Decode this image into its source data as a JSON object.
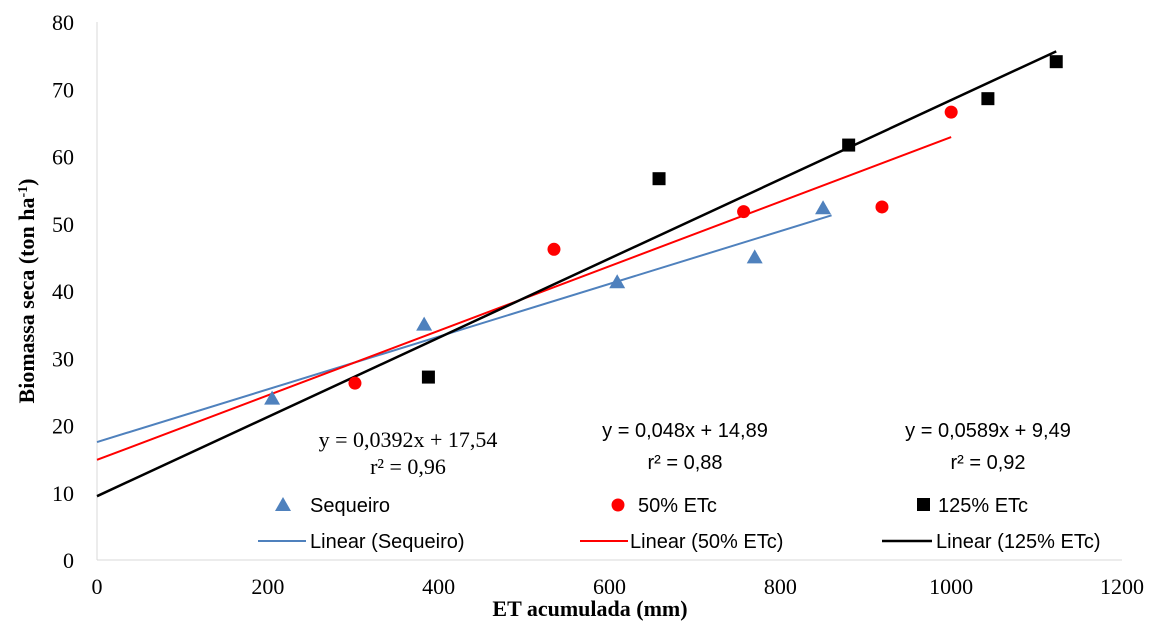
{
  "chart_data": {
    "type": "scatter",
    "xlabel": "ET acumulada (mm)",
    "ylabel_main": "Biomassa seca (ton ha",
    "ylabel_sup": "-1",
    "ylabel_close": ")",
    "xlim": [
      0,
      1200
    ],
    "ylim": [
      0,
      80
    ],
    "xticks": [
      0,
      200,
      400,
      600,
      800,
      1000,
      1200
    ],
    "yticks": [
      0,
      10,
      20,
      30,
      40,
      50,
      60,
      70,
      80
    ],
    "grid": false,
    "legend_position": "bottom",
    "series": [
      {
        "name": "Sequeiro",
        "marker": "triangle",
        "color": "#4f81bd",
        "points": [
          [
            205,
            24
          ],
          [
            383,
            35
          ],
          [
            609,
            41.3
          ],
          [
            770,
            45
          ],
          [
            850,
            52.3
          ]
        ],
        "trend": {
          "name": "Linear (Sequeiro)",
          "slope": 0.0392,
          "intercept": 17.54,
          "x_range": [
            0,
            860
          ],
          "equation": "y = 0,0392x + 17,54",
          "r2": "r² = 0,96"
        }
      },
      {
        "name": "50% ETc",
        "marker": "circle",
        "color": "#ff0000",
        "points": [
          [
            302,
            26.3
          ],
          [
            535,
            46.2
          ],
          [
            757,
            51.8
          ],
          [
            919,
            52.5
          ],
          [
            1000,
            66.6
          ]
        ],
        "trend": {
          "name": "Linear (50% ETc)",
          "slope": 0.048,
          "intercept": 14.89,
          "x_range": [
            0,
            1000
          ],
          "equation": "y = 0,048x + 14,89",
          "r2": "r² = 0,88"
        }
      },
      {
        "name": "125% ETc",
        "marker": "square",
        "color": "#000000",
        "points": [
          [
            388,
            27.2
          ],
          [
            658,
            56.7
          ],
          [
            880,
            61.7
          ],
          [
            1043,
            68.6
          ],
          [
            1123,
            74.1
          ]
        ],
        "trend": {
          "name": "Linear (125% ETc)",
          "slope": 0.0589,
          "intercept": 9.49,
          "x_range": [
            0,
            1123
          ],
          "equation": "y = 0,0589x + 9,49",
          "r2": "r² = 0,92"
        }
      }
    ]
  }
}
